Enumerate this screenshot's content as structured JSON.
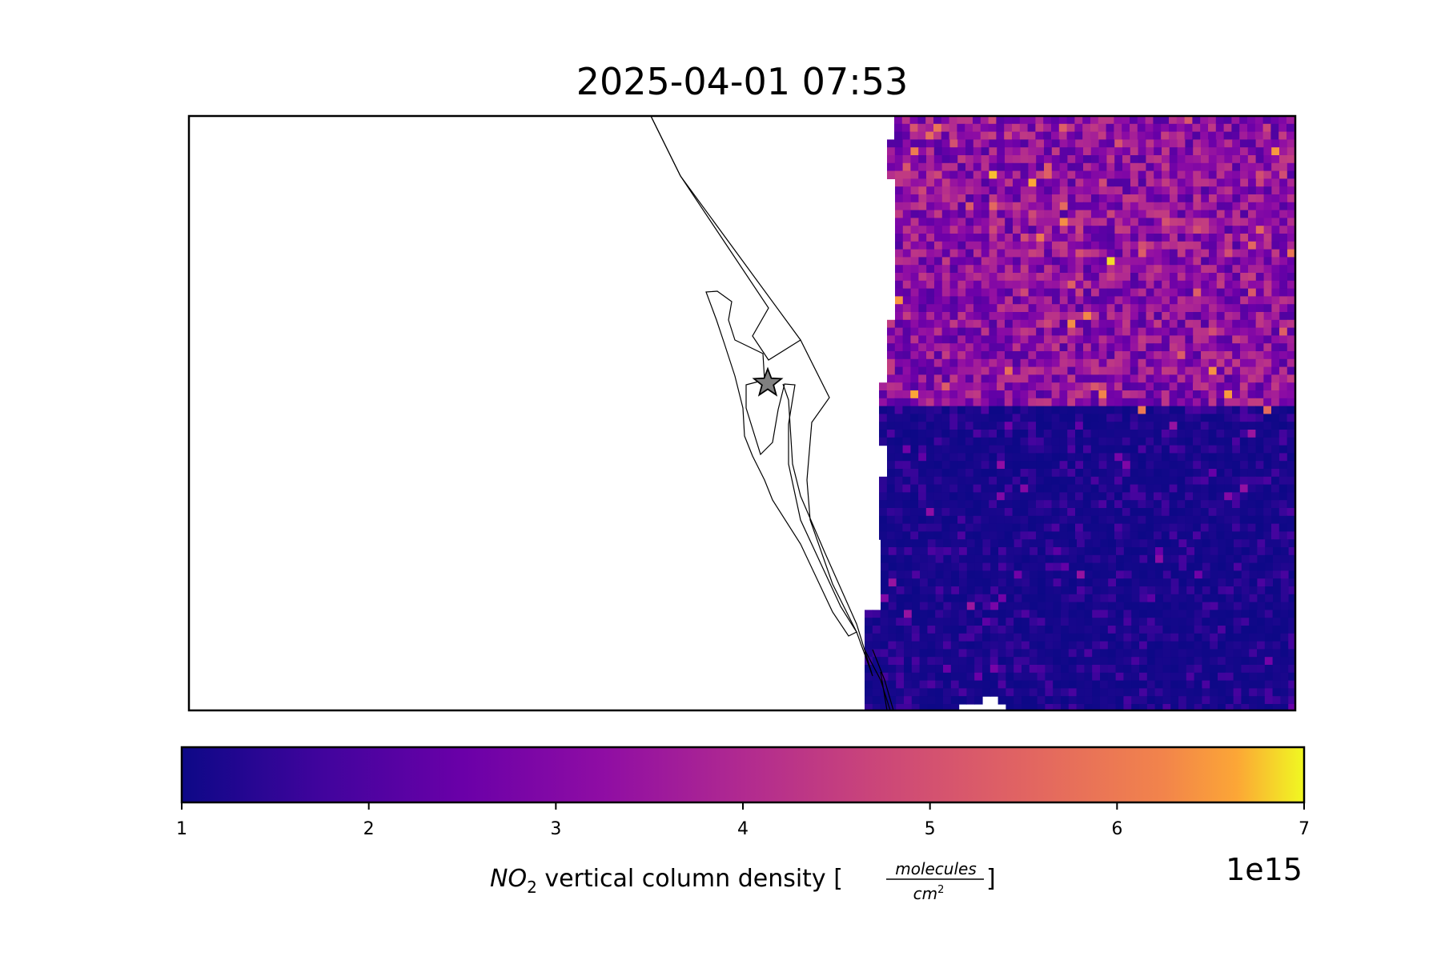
{
  "chart_data": {
    "type": "heatmap",
    "title": "2025-04-01 07:53",
    "colormap": "plasma",
    "colorbar": {
      "min": 1,
      "max": 7,
      "ticks": [
        "1",
        "2",
        "3",
        "4",
        "5",
        "6",
        "7"
      ],
      "label_main": "NO",
      "label_sub": "2",
      "label_rest": " vertical column density [",
      "label_num": "molecules",
      "label_den": "cm",
      "label_den_sup": "2",
      "label_close": "]",
      "scale_label": "1e15",
      "orientation": "horizontal",
      "location": "bottom"
    },
    "map": {
      "coastline": true,
      "site_marker": "star",
      "site_marker_color": "#808080",
      "data_region": "east",
      "description_values": {
        "north_typical": [
          2.0,
          4.5
        ],
        "south_typical": [
          1.0,
          2.0
        ],
        "max_observed": 7.0
      }
    }
  }
}
